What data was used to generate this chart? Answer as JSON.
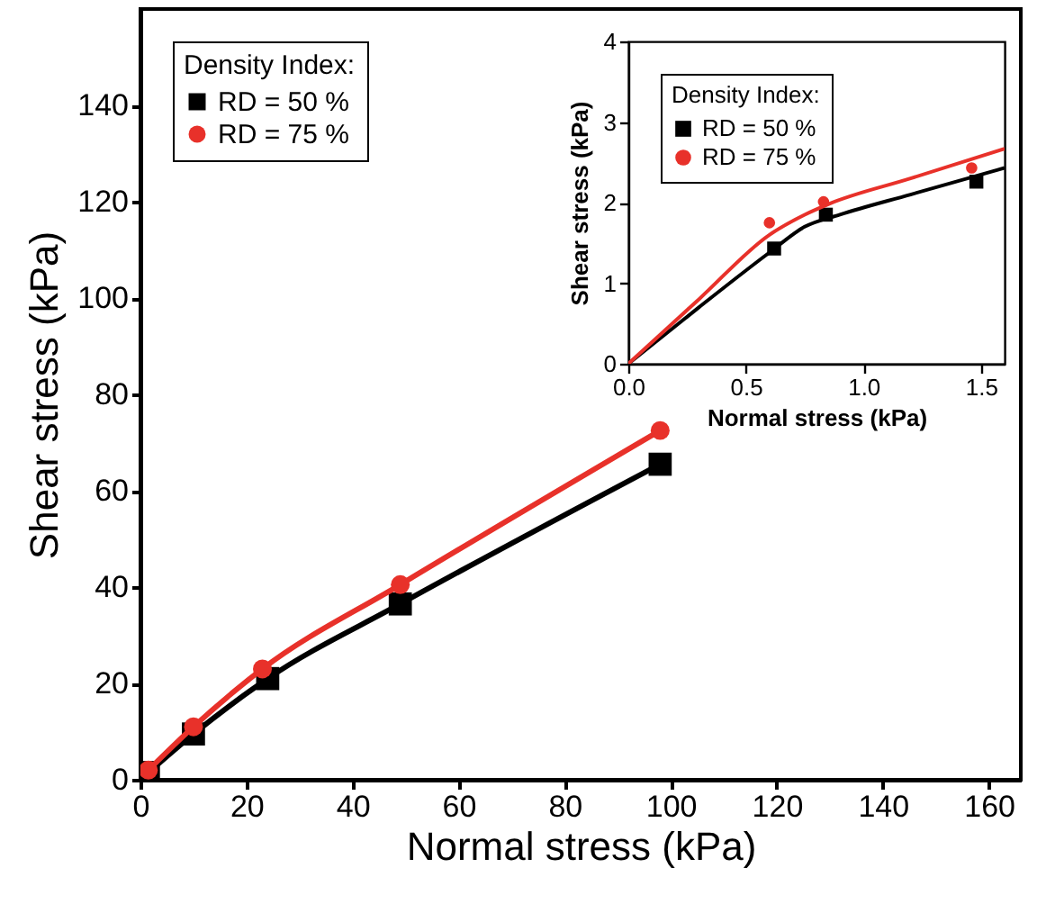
{
  "chart_data": [
    {
      "type": "line",
      "xlabel": "Normal stress (kPa)",
      "ylabel": "Shear stress (kPa)",
      "legend_title": "Density Index:",
      "legend": "top left",
      "xlim": [
        0,
        166
      ],
      "ylim": [
        0,
        160
      ],
      "xticks": [
        0,
        20,
        40,
        60,
        80,
        100,
        120,
        140,
        160
      ],
      "yticks": [
        0,
        20,
        40,
        60,
        80,
        100,
        120,
        140
      ],
      "series": [
        {
          "name": "RD = 50 %",
          "color": "#000000",
          "marker": "square",
          "x": [
            1.5,
            10,
            24,
            49,
            98
          ],
          "values": [
            1.5,
            9.5,
            21,
            36.5,
            65.5
          ]
        },
        {
          "name": "RD = 75 %",
          "color": "#e8312a",
          "marker": "circle",
          "x": [
            1.5,
            10,
            23,
            49,
            98
          ],
          "values": [
            2,
            11,
            23,
            40.5,
            72.5
          ]
        }
      ]
    },
    {
      "type": "line",
      "xlabel": "Normal stress (kPa)",
      "ylabel": "Shear stress (kPa)",
      "legend_title": "Density Index:",
      "legend": "top left",
      "xlim": [
        0,
        1.6
      ],
      "ylim": [
        0,
        4
      ],
      "xticks": [
        {
          "value": 0,
          "label": "0.0"
        },
        0.5,
        {
          "value": 1,
          "label": "1.0"
        },
        1.5
      ],
      "yticks": [
        0,
        1,
        2,
        3,
        4
      ],
      "series": [
        {
          "name": "RD = 50 %",
          "type": "scatter",
          "color": "#000000",
          "marker": "square",
          "x": [
            0.62,
            0.84,
            1.48
          ],
          "values": [
            1.43,
            1.85,
            2.26
          ]
        },
        {
          "name": "RD = 75 %",
          "type": "scatter",
          "color": "#e8312a",
          "marker": "circle",
          "x": [
            0.6,
            0.83,
            1.46
          ],
          "values": [
            1.75,
            2.01,
            2.43
          ]
        },
        {
          "type": "line",
          "color": "#000000",
          "marker": "none",
          "x": [
            0,
            0.3,
            0.6,
            0.75,
            0.9,
            1.2,
            1.6
          ],
          "values": [
            0,
            0.7,
            1.38,
            1.7,
            1.85,
            2.1,
            2.43
          ]
        },
        {
          "type": "line",
          "color": "#e8312a",
          "marker": "none",
          "x": [
            0,
            0.3,
            0.6,
            0.75,
            0.85,
            1.2,
            1.6
          ],
          "values": [
            0,
            0.8,
            1.6,
            1.85,
            1.98,
            2.3,
            2.67
          ]
        }
      ]
    }
  ]
}
